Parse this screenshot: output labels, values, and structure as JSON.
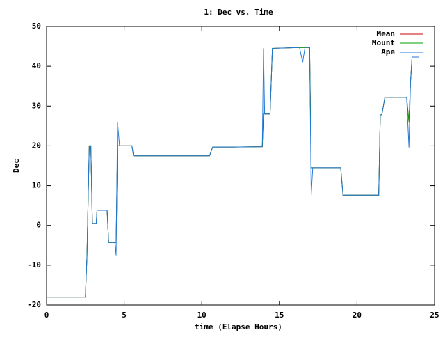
{
  "chart_data": {
    "type": "line",
    "title": "1: Dec vs. Time",
    "xlabel": "time (Elapse Hours)",
    "ylabel": "Dec",
    "xlim": [
      0,
      25
    ],
    "ylim": [
      -20,
      50
    ],
    "xticks": [
      0,
      5,
      10,
      15,
      20,
      25
    ],
    "yticks": [
      -20,
      -10,
      0,
      10,
      20,
      30,
      40,
      50
    ],
    "grid": false,
    "legend": "upper-right",
    "x": [
      0,
      2.5,
      2.6,
      2.75,
      2.85,
      2.95,
      3.2,
      3.25,
      3.9,
      4.0,
      4.4,
      4.48,
      4.57,
      4.7,
      5.5,
      5.6,
      10.5,
      10.7,
      12.0,
      13.9,
      13.98,
      14.05,
      14.4,
      14.55,
      16.3,
      16.5,
      16.65,
      16.95,
      17.05,
      17.15,
      18.95,
      19.1,
      21.4,
      21.5,
      21.6,
      21.8,
      23.2,
      23.35,
      23.45,
      23.55,
      24.0
    ],
    "series": [
      {
        "name": "Mean",
        "color": "#d00000",
        "values": [
          -18,
          -18,
          -8,
          20,
          20,
          0.5,
          0.5,
          3.8,
          3.8,
          -4.3,
          -4.3,
          -4.3,
          20,
          20,
          20,
          17.5,
          17.5,
          19.7,
          19.7,
          19.8,
          28,
          28,
          28,
          44.5,
          44.7,
          44.7,
          44.7,
          44.7,
          14.5,
          14.5,
          14.5,
          7.6,
          7.6,
          27.8,
          27.8,
          32.2,
          32.2,
          26,
          36,
          42.3,
          42.3
        ]
      },
      {
        "name": "Mount",
        "color": "#00a000",
        "values": [
          -18,
          -18,
          -8,
          20,
          20,
          0.5,
          0.5,
          3.8,
          3.8,
          -4.3,
          -4.3,
          -4.3,
          20,
          20,
          20,
          17.5,
          17.5,
          19.7,
          19.7,
          19.8,
          28,
          28,
          28,
          44.5,
          44.7,
          44.7,
          44.7,
          44.7,
          14.5,
          14.5,
          14.5,
          7.6,
          7.6,
          27.8,
          27.8,
          32.2,
          32.2,
          26,
          36,
          42.3,
          42.3
        ]
      },
      {
        "name": "Ape",
        "color": "#1f78d8",
        "values": [
          -18,
          -18,
          -8,
          20,
          20,
          0.5,
          0.5,
          3.8,
          3.8,
          -4.3,
          -4.3,
          -7.5,
          26,
          20,
          20,
          17.5,
          17.5,
          19.7,
          19.7,
          19.8,
          44.5,
          28,
          28,
          44.5,
          44.7,
          41,
          44.7,
          44.7,
          7.6,
          14.5,
          14.5,
          7.6,
          7.6,
          27.8,
          27.8,
          32.2,
          32.2,
          19.6,
          36,
          42.3,
          42.3
        ]
      }
    ]
  }
}
